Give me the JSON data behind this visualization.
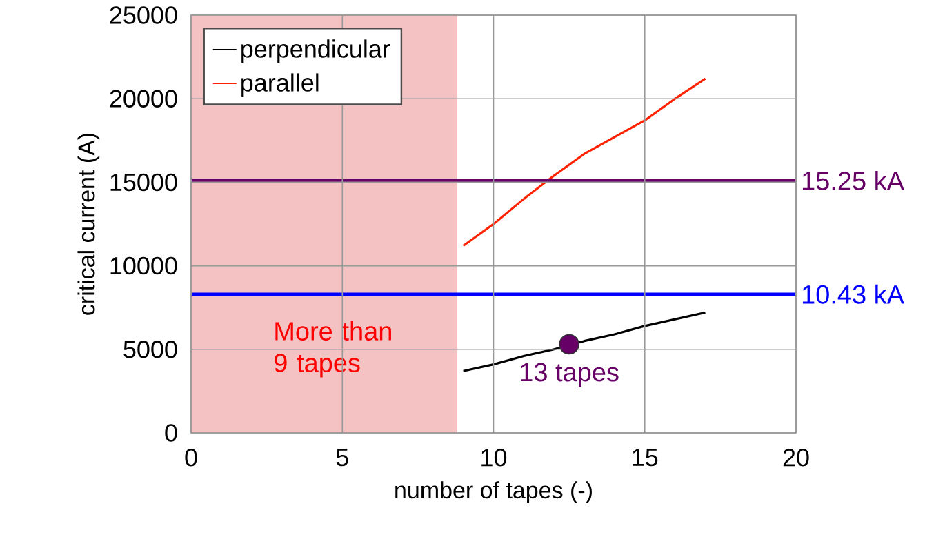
{
  "chart_data": {
    "type": "line",
    "xlabel": "number of tapes (-)",
    "ylabel": "critical current (A)",
    "xlim": [
      0,
      20
    ],
    "xticks": [
      0,
      5,
      10,
      15,
      20
    ],
    "ylim": [
      0,
      25000
    ],
    "yticks": [
      0,
      5000,
      10000,
      15000,
      20000,
      25000
    ],
    "grid": true,
    "legend": "top left",
    "marker": "none",
    "series": [
      {
        "name": "perpendicular",
        "color": "#000000",
        "x": [
          9,
          10,
          11,
          12,
          13,
          14,
          15,
          16,
          17
        ],
        "values": [
          3700,
          4100,
          4600,
          5000,
          5500,
          5900,
          6400,
          6800,
          7200
        ]
      },
      {
        "name": "parallel",
        "color": "#ff2200",
        "x": [
          9,
          10,
          11,
          12,
          13,
          14,
          15,
          16,
          17
        ],
        "values": [
          11200,
          12500,
          14000,
          15400,
          16700,
          17700,
          18700,
          20000,
          21200
        ]
      },
      {
        "type": "scatter",
        "marker": "circle",
        "color": "#660066",
        "x": [
          12.5
        ],
        "values": [
          5300
        ]
      }
    ],
    "ref_lines": [
      {
        "axis": "y",
        "value": 15100,
        "label": "15.25 kA",
        "color": "#660066"
      },
      {
        "axis": "y",
        "value": 8300,
        "label": "10.43 kA",
        "color": "#0000ff"
      }
    ],
    "bands": [
      {
        "axis": "x",
        "from": 0,
        "to": 8.8,
        "label": "More than 9 tapes",
        "color": "#f4c2c2"
      }
    ],
    "annotations": [
      {
        "text": "13 tapes",
        "x": 12.5,
        "y": 5300
      }
    ]
  }
}
